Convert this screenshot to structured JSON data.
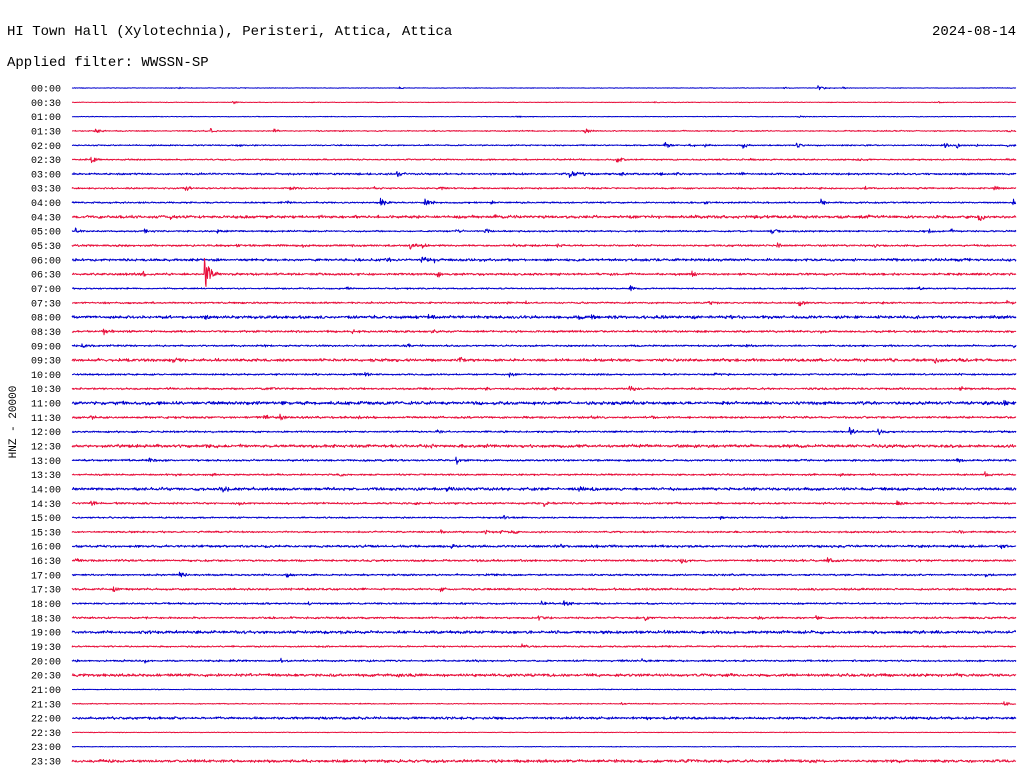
{
  "chart_data": {
    "type": "line",
    "title": "HI Town Hall (Xylotechnia), Peristeri, Attica, Attica",
    "date": "2024-08-14",
    "subtitle": "Applied filter: WWSSN-SP",
    "ylabel": "HNZ - 20000",
    "xlim": [
      0,
      30
    ],
    "grid": false,
    "colors": [
      "#0000cd",
      "#e8103c"
    ],
    "rows": [
      {
        "label": "00:00",
        "noise": 400,
        "events": [
          [
            3.4,
            1500
          ],
          [
            10.4,
            1500
          ],
          [
            22.6,
            1500
          ],
          [
            23.7,
            5000
          ],
          [
            24.5,
            1500
          ]
        ]
      },
      {
        "label": "00:30",
        "noise": 400,
        "events": [
          [
            5.1,
            2500
          ],
          [
            18.5,
            1500
          ],
          [
            27.5,
            1500
          ]
        ]
      },
      {
        "label": "01:00",
        "noise": 400,
        "events": [
          [
            14.1,
            1500
          ],
          [
            23.1,
            1500
          ]
        ]
      },
      {
        "label": "01:30",
        "noise": 700,
        "events": [
          [
            0.7,
            4000
          ],
          [
            4.4,
            4000
          ],
          [
            6.4,
            4000
          ],
          [
            16.3,
            4000
          ],
          [
            29.7,
            2500
          ]
        ]
      },
      {
        "label": "02:00",
        "noise": 800,
        "events": [
          [
            5.2,
            3000
          ],
          [
            18.8,
            6000
          ],
          [
            19.6,
            3000
          ],
          [
            20.1,
            3000
          ],
          [
            21.3,
            5000
          ],
          [
            23.0,
            5000
          ],
          [
            27.7,
            6000
          ],
          [
            28.1,
            4000
          ],
          [
            28.7,
            3000
          ],
          [
            29.7,
            3000
          ]
        ]
      },
      {
        "label": "02:30",
        "noise": 900,
        "events": [
          [
            0.6,
            6000
          ],
          [
            15.4,
            2500
          ],
          [
            17.3,
            5000
          ],
          [
            21.5,
            4000
          ],
          [
            25.0,
            2000
          ],
          [
            29.7,
            2500
          ]
        ]
      },
      {
        "label": "03:00",
        "noise": 1200,
        "events": [
          [
            10.3,
            6000
          ],
          [
            15.8,
            7000
          ],
          [
            16.2,
            4000
          ],
          [
            17.4,
            4000
          ],
          [
            18.7,
            3000
          ],
          [
            19.2,
            3000
          ],
          [
            21.2,
            2500
          ]
        ]
      },
      {
        "label": "03:30",
        "noise": 1000,
        "events": [
          [
            3.6,
            5000
          ],
          [
            6.9,
            4000
          ],
          [
            9.6,
            3000
          ],
          [
            11.7,
            3000
          ],
          [
            25.2,
            3000
          ],
          [
            29.3,
            5000
          ]
        ]
      },
      {
        "label": "04:00",
        "noise": 1000,
        "events": [
          [
            6.8,
            3000
          ],
          [
            9.8,
            7000
          ],
          [
            11.2,
            7000
          ],
          [
            13.3,
            3000
          ],
          [
            20.1,
            3000
          ],
          [
            23.8,
            5000
          ],
          [
            29.9,
            6000
          ]
        ]
      },
      {
        "label": "04:30",
        "noise": 1800,
        "events": [
          [
            3.1,
            5000
          ],
          [
            13.4,
            3000
          ],
          [
            25.3,
            3000
          ],
          [
            28.8,
            6000
          ]
        ]
      },
      {
        "label": "05:00",
        "noise": 1000,
        "events": [
          [
            0.1,
            6000
          ],
          [
            2.3,
            4000
          ],
          [
            4.6,
            4000
          ],
          [
            12.2,
            3000
          ],
          [
            13.1,
            6000
          ],
          [
            22.2,
            6000
          ],
          [
            27.2,
            4000
          ],
          [
            27.9,
            4000
          ]
        ]
      },
      {
        "label": "05:30",
        "noise": 1200,
        "events": [
          [
            5.2,
            3000
          ],
          [
            7.3,
            3000
          ],
          [
            8.9,
            2500
          ],
          [
            10.7,
            6000
          ],
          [
            11.1,
            4000
          ],
          [
            14.0,
            3000
          ],
          [
            15.4,
            3000
          ],
          [
            22.4,
            4000
          ],
          [
            25.5,
            2500
          ]
        ]
      },
      {
        "label": "06:00",
        "noise": 1600,
        "events": [
          [
            10.0,
            4000
          ],
          [
            11.1,
            7000
          ],
          [
            11.5,
            4000
          ]
        ]
      },
      {
        "label": "06:30",
        "noise": 1400,
        "events": [
          [
            2.2,
            5000
          ],
          [
            4.2,
            28000
          ],
          [
            4.6,
            5000
          ],
          [
            11.6,
            5000
          ],
          [
            19.7,
            4000
          ]
        ]
      },
      {
        "label": "07:00",
        "noise": 900,
        "events": [
          [
            8.7,
            4000
          ],
          [
            17.7,
            6000
          ],
          [
            26.9,
            4000
          ]
        ]
      },
      {
        "label": "07:30",
        "noise": 1100,
        "events": [
          [
            13.8,
            3000
          ],
          [
            14.4,
            4000
          ],
          [
            20.2,
            5000
          ],
          [
            23.1,
            6000
          ],
          [
            25.7,
            3000
          ],
          [
            29.7,
            4000
          ]
        ]
      },
      {
        "label": "08:00",
        "noise": 1800,
        "events": [
          [
            4.2,
            3000
          ],
          [
            11.3,
            4000
          ],
          [
            16.1,
            5000
          ],
          [
            16.5,
            4000
          ],
          [
            20.9,
            3000
          ]
        ]
      },
      {
        "label": "08:30",
        "noise": 1300,
        "events": [
          [
            1.0,
            5000
          ],
          [
            8.9,
            3000
          ],
          [
            11.4,
            3000
          ],
          [
            23.8,
            3000
          ]
        ]
      },
      {
        "label": "09:00",
        "noise": 1100,
        "events": [
          [
            0.3,
            3000
          ],
          [
            6.1,
            3000
          ],
          [
            10.6,
            5000
          ],
          [
            21.4,
            2500
          ],
          [
            29.9,
            4000
          ]
        ]
      },
      {
        "label": "09:30",
        "noise": 1800,
        "events": [
          [
            1.7,
            3000
          ],
          [
            3.2,
            2500
          ],
          [
            12.3,
            5000
          ],
          [
            25.8,
            3000
          ],
          [
            27.4,
            5000
          ]
        ]
      },
      {
        "label": "10:00",
        "noise": 1100,
        "events": [
          [
            7.6,
            4000
          ],
          [
            9.3,
            3000
          ],
          [
            13.9,
            5000
          ],
          [
            20.4,
            2500
          ]
        ]
      },
      {
        "label": "10:30",
        "noise": 1200,
        "events": [
          [
            3.0,
            3000
          ],
          [
            6.3,
            2500
          ],
          [
            13.1,
            3000
          ],
          [
            15.3,
            3000
          ],
          [
            17.7,
            4000
          ],
          [
            28.2,
            4000
          ]
        ]
      },
      {
        "label": "11:00",
        "noise": 2000,
        "events": [
          [
            17.8,
            4000
          ],
          [
            29.6,
            5000
          ]
        ]
      },
      {
        "label": "11:30",
        "noise": 1300,
        "events": [
          [
            0.6,
            3000
          ],
          [
            6.1,
            4000
          ],
          [
            6.6,
            5000
          ],
          [
            9.1,
            4000
          ],
          [
            16.5,
            3000
          ],
          [
            18.4,
            2500
          ]
        ]
      },
      {
        "label": "12:00",
        "noise": 1100,
        "events": [
          [
            11.6,
            4000
          ],
          [
            24.7,
            6000
          ],
          [
            25.6,
            6000
          ]
        ]
      },
      {
        "label": "12:30",
        "noise": 1900,
        "events": [
          [
            11.4,
            3000
          ],
          [
            13.1,
            4000
          ],
          [
            25.4,
            2500
          ]
        ]
      },
      {
        "label": "13:00",
        "noise": 1200,
        "events": [
          [
            2.4,
            5000
          ],
          [
            12.2,
            6000
          ],
          [
            28.1,
            4000
          ]
        ]
      },
      {
        "label": "13:30",
        "noise": 1100,
        "events": [
          [
            3.3,
            3000
          ],
          [
            4.4,
            3000
          ],
          [
            8.5,
            3000
          ],
          [
            24.4,
            3000
          ],
          [
            29.0,
            4000
          ]
        ]
      },
      {
        "label": "14:00",
        "noise": 1800,
        "events": [
          [
            4.7,
            6000
          ],
          [
            11.9,
            3000
          ],
          [
            16.1,
            3000
          ],
          [
            16.5,
            3000
          ],
          [
            25.7,
            3000
          ]
        ]
      },
      {
        "label": "14:30",
        "noise": 1200,
        "events": [
          [
            0.6,
            5000
          ],
          [
            5.3,
            3000
          ],
          [
            10.9,
            3000
          ],
          [
            15.0,
            4000
          ],
          [
            26.2,
            4000
          ]
        ]
      },
      {
        "label": "15:00",
        "noise": 900,
        "events": [
          [
            13.7,
            4000
          ],
          [
            20.6,
            3000
          ],
          [
            22.5,
            3000
          ]
        ]
      },
      {
        "label": "15:30",
        "noise": 1100,
        "events": [
          [
            11.7,
            3000
          ],
          [
            13.1,
            4000
          ],
          [
            13.6,
            3000
          ],
          [
            14.0,
            5000
          ],
          [
            28.2,
            4000
          ]
        ]
      },
      {
        "label": "16:00",
        "noise": 1500,
        "events": [
          [
            12.0,
            4000
          ],
          [
            15.5,
            4000
          ],
          [
            29.5,
            4000
          ]
        ]
      },
      {
        "label": "16:30",
        "noise": 1300,
        "events": [
          [
            0.1,
            4000
          ],
          [
            19.3,
            5000
          ],
          [
            24.0,
            5000
          ]
        ]
      },
      {
        "label": "17:00",
        "noise": 1100,
        "events": [
          [
            3.4,
            6000
          ],
          [
            6.8,
            4000
          ],
          [
            13.4,
            2000
          ],
          [
            29.0,
            4000
          ]
        ]
      },
      {
        "label": "17:30",
        "noise": 1300,
        "events": [
          [
            1.3,
            4000
          ],
          [
            11.7,
            5000
          ],
          [
            21.2,
            3000
          ]
        ]
      },
      {
        "label": "18:00",
        "noise": 1100,
        "events": [
          [
            7.5,
            3000
          ],
          [
            14.9,
            4000
          ],
          [
            15.6,
            5000
          ]
        ]
      },
      {
        "label": "18:30",
        "noise": 1200,
        "events": [
          [
            14.8,
            5000
          ],
          [
            18.2,
            4000
          ],
          [
            21.8,
            4000
          ],
          [
            23.6,
            3000
          ]
        ]
      },
      {
        "label": "19:00",
        "noise": 1800,
        "events": [
          [
            18.8,
            5000
          ],
          [
            29.7,
            3000
          ]
        ]
      },
      {
        "label": "19:30",
        "noise": 1000,
        "events": [
          [
            14.3,
            4000
          ]
        ]
      },
      {
        "label": "20:00",
        "noise": 1100,
        "events": [
          [
            0.1,
            3000
          ],
          [
            2.3,
            3000
          ],
          [
            5.1,
            2500
          ],
          [
            6.6,
            4000
          ],
          [
            18.1,
            4000
          ]
        ]
      },
      {
        "label": "20:30",
        "noise": 1800,
        "events": [
          [
            10.3,
            4000
          ],
          [
            20.9,
            3000
          ],
          [
            28.1,
            4000
          ]
        ]
      },
      {
        "label": "21:00",
        "noise": 500,
        "events": []
      },
      {
        "label": "21:30",
        "noise": 600,
        "events": [
          [
            17.4,
            2000
          ],
          [
            29.6,
            5000
          ]
        ]
      },
      {
        "label": "22:00",
        "noise": 1600,
        "events": []
      },
      {
        "label": "22:30",
        "noise": 400,
        "events": []
      },
      {
        "label": "23:00",
        "noise": 400,
        "events": []
      },
      {
        "label": "23:30",
        "noise": 1800,
        "events": []
      }
    ]
  }
}
